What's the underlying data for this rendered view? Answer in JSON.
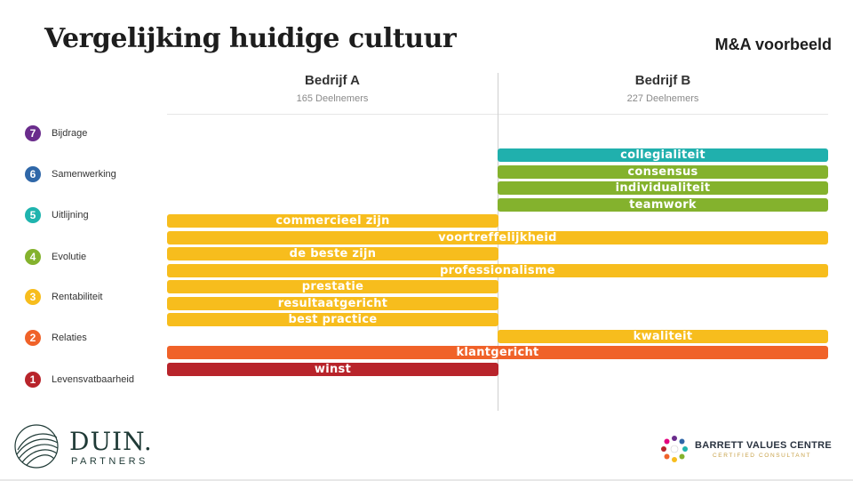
{
  "title": "Vergelijking huidige cultuur",
  "tag": "M&A voorbeeld",
  "columns": {
    "a": {
      "name": "Bedrijf A",
      "count": "165 Deelnemers"
    },
    "b": {
      "name": "Bedrijf B",
      "count": "227 Deelnemers"
    }
  },
  "levels": [
    {
      "num": "7",
      "label": "Bijdrage",
      "color": "#6a2c8c"
    },
    {
      "num": "6",
      "label": "Samenwerking",
      "color": "#2f67a8"
    },
    {
      "num": "5",
      "label": "Uitlijning",
      "color": "#1fb4ae"
    },
    {
      "num": "4",
      "label": "Evolutie",
      "color": "#84b22d"
    },
    {
      "num": "3",
      "label": "Rentabiliteit",
      "color": "#f7bd1d"
    },
    {
      "num": "2",
      "label": "Relaties",
      "color": "#f06229"
    },
    {
      "num": "1",
      "label": "Levensvatbaarheid",
      "color": "#b8242b"
    }
  ],
  "values": [
    {
      "label": "collegialiteit",
      "scope": "b",
      "level": 5,
      "color": "#20b0ad"
    },
    {
      "label": "consensus",
      "scope": "b",
      "level": 4,
      "color": "#84b22d"
    },
    {
      "label": "individualiteit",
      "scope": "b",
      "level": 4,
      "color": "#84b22d"
    },
    {
      "label": "teamwork",
      "scope": "b",
      "level": 4,
      "color": "#84b22d"
    },
    {
      "label": "commercieel zijn",
      "scope": "a",
      "level": 3,
      "color": "#f7bd1d"
    },
    {
      "label": "voortreffelijkheid",
      "scope": "both",
      "level": 3,
      "color": "#f7bd1d"
    },
    {
      "label": "de beste zijn",
      "scope": "a",
      "level": 3,
      "color": "#f7bd1d"
    },
    {
      "label": "professionalisme",
      "scope": "both",
      "level": 3,
      "color": "#f7bd1d"
    },
    {
      "label": "prestatie",
      "scope": "a",
      "level": 3,
      "color": "#f7bd1d"
    },
    {
      "label": "resultaatgericht",
      "scope": "a",
      "level": 3,
      "color": "#f7bd1d"
    },
    {
      "label": "best practice",
      "scope": "a",
      "level": 3,
      "color": "#f7bd1d"
    },
    {
      "label": "kwaliteit",
      "scope": "b",
      "level": 3,
      "color": "#f7bd1d"
    },
    {
      "label": "klantgericht",
      "scope": "both",
      "level": 2,
      "color": "#f06229"
    },
    {
      "label": "winst",
      "scope": "a",
      "level": 1,
      "color": "#b8242b"
    }
  ],
  "logos": {
    "duin": {
      "name": "DUIN.",
      "sub": "PARTNERS",
      "color": "#1f3a36"
    },
    "barrett": {
      "name": "BARRETT VALUES CENTRE",
      "sub": "CERTIFIED CONSULTANT"
    }
  }
}
